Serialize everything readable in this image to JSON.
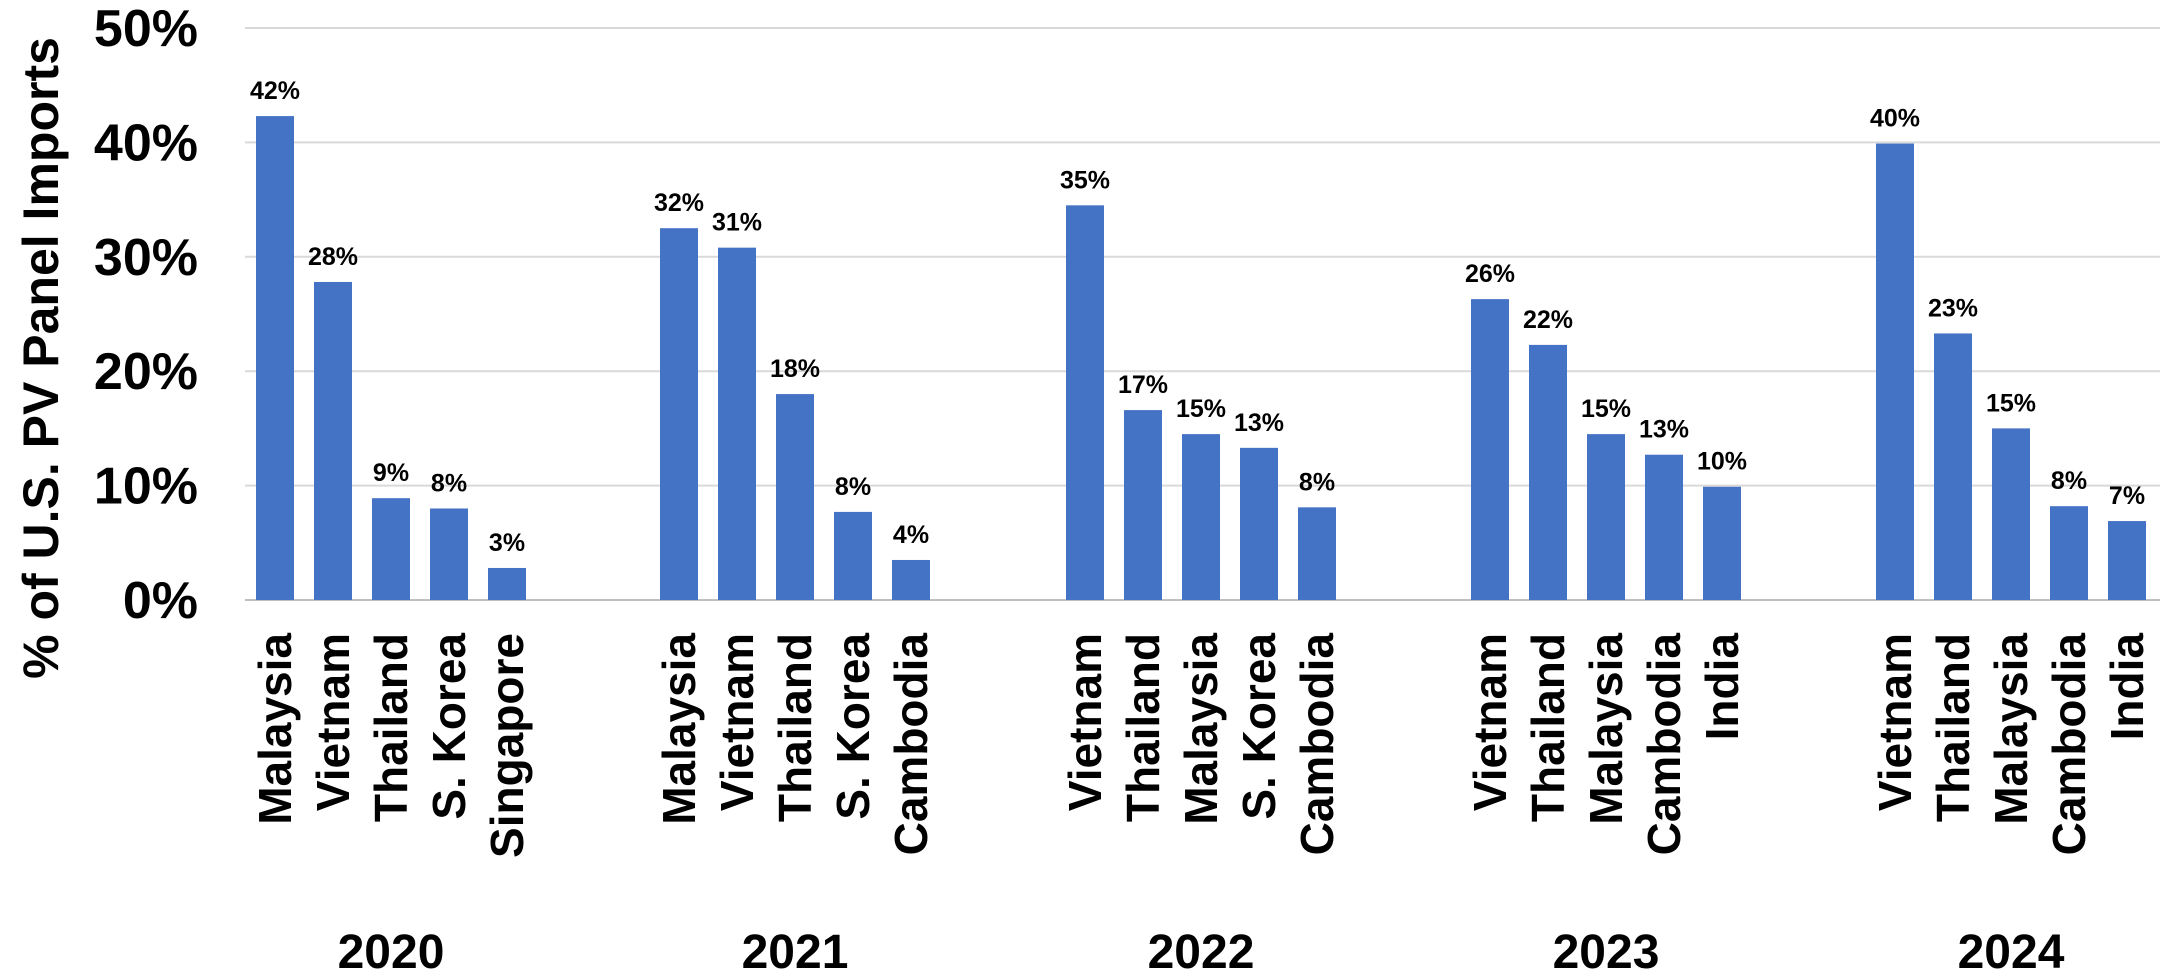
{
  "chart_data": {
    "type": "bar",
    "ylabel": "% of U.S. PV Panel Imports",
    "ylim": [
      0,
      50
    ],
    "yticks": [
      "0%",
      "10%",
      "20%",
      "30%",
      "40%",
      "50%"
    ],
    "grid": true,
    "bar_color": "#4472C4",
    "groups": [
      {
        "label": "2020",
        "categories": [
          "Malaysia",
          "Vietnam",
          "Thailand",
          "S. Korea",
          "Singapore"
        ],
        "values": [
          42.3,
          27.8,
          8.9,
          8.0,
          2.8
        ],
        "labels": [
          "42%",
          "28%",
          "9%",
          "8%",
          "3%"
        ]
      },
      {
        "label": "2021",
        "categories": [
          "Malaysia",
          "Vietnam",
          "Thailand",
          "S. Korea",
          "Cambodia"
        ],
        "values": [
          32.5,
          30.8,
          18.0,
          7.7,
          3.5
        ],
        "labels": [
          "32%",
          "31%",
          "18%",
          "8%",
          "4%"
        ]
      },
      {
        "label": "2022",
        "categories": [
          "Vietnam",
          "Thailand",
          "Malaysia",
          "S. Korea",
          "Cambodia"
        ],
        "values": [
          34.5,
          16.6,
          14.5,
          13.3,
          8.1
        ],
        "labels": [
          "35%",
          "17%",
          "15%",
          "13%",
          "8%"
        ]
      },
      {
        "label": "2023",
        "categories": [
          "Vietnam",
          "Thailand",
          "Malaysia",
          "Cambodia",
          "India"
        ],
        "values": [
          26.3,
          22.3,
          14.5,
          12.7,
          9.9
        ],
        "labels": [
          "26%",
          "22%",
          "15%",
          "13%",
          "10%"
        ]
      },
      {
        "label": "2024",
        "categories": [
          "Vietnam",
          "Thailand",
          "Malaysia",
          "Cambodia",
          "India"
        ],
        "values": [
          39.9,
          23.3,
          15.0,
          8.2,
          6.9
        ],
        "labels": [
          "40%",
          "23%",
          "15%",
          "8%",
          "7%"
        ]
      }
    ]
  }
}
